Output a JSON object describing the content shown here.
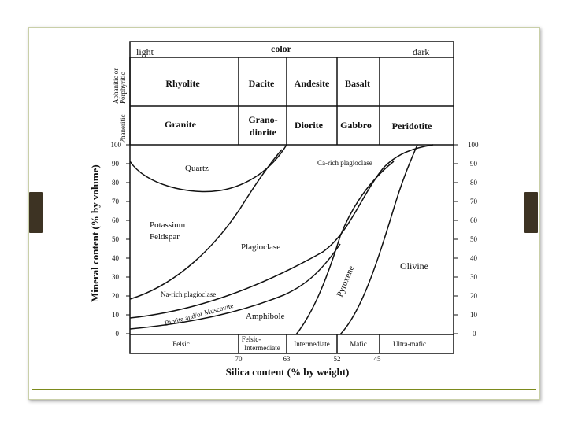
{
  "header": {
    "light": "light",
    "color": "color",
    "dark": "dark"
  },
  "texture_labels": {
    "aphanitic": [
      "Aphanitic or",
      "Porphyritic"
    ],
    "phaneritic": "Phaneritic"
  },
  "volcanic_rocks": [
    "Rhyolite",
    "Dacite",
    "Andesite",
    "Basalt"
  ],
  "plutonic_rocks": [
    {
      "lines": [
        "Granite"
      ]
    },
    {
      "lines": [
        "Grano-",
        "diorite"
      ]
    },
    {
      "lines": [
        "Diorite"
      ]
    },
    {
      "lines": [
        "Gabbro"
      ]
    },
    {
      "lines": [
        "Peridotite"
      ]
    }
  ],
  "y_axis": {
    "label": "Mineral content  (% by volume)",
    "ticks": [
      "100",
      "90",
      "80",
      "70",
      "60",
      "50",
      "40",
      "30",
      "20",
      "10",
      "0"
    ]
  },
  "minerals": {
    "quartz": "Quartz",
    "potassium": [
      "Potassium",
      "Feldspar"
    ],
    "plagioclase": "Plagioclase",
    "ca_rich": "Ca-rich plagioclase",
    "na_rich": "Na-rich plagioclase",
    "biotite": "Biotite and/or Muscovite",
    "amphibole": "Amphibole",
    "pyroxene": "Pyroxene",
    "olivine": "Olivine"
  },
  "composition": [
    {
      "lines": [
        "Felsic"
      ]
    },
    {
      "lines": [
        "Felsic-",
        "Intermediate"
      ]
    },
    {
      "lines": [
        "Intermediate"
      ]
    },
    {
      "lines": [
        "Mafic"
      ]
    },
    {
      "lines": [
        "Ultra-mafic"
      ]
    }
  ],
  "silica_ticks": [
    "70",
    "63",
    "52",
    "45"
  ],
  "x_axis": {
    "label": "Silica content (% by weight)"
  }
}
